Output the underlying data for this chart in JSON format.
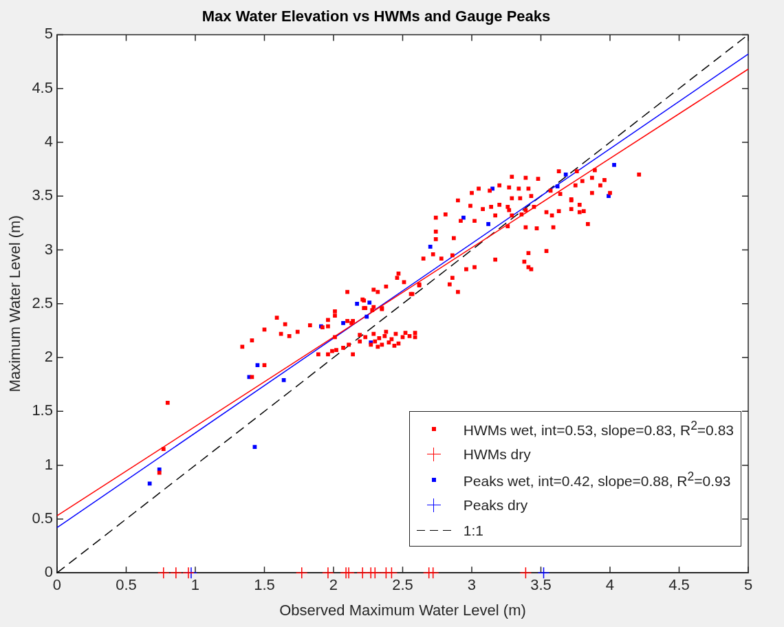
{
  "chart_data": {
    "type": "scatter",
    "title": "Max Water Elevation vs HWMs and Gauge Peaks",
    "xlabel": "Observed Maximum Water Level (m)",
    "ylabel": "Maximum Water Level (m)",
    "xlim": [
      0,
      5
    ],
    "ylim": [
      0,
      5
    ],
    "xticks": [
      0,
      0.5,
      1,
      1.5,
      2,
      2.5,
      3,
      3.5,
      4,
      4.5,
      5
    ],
    "yticks": [
      0,
      0.5,
      1,
      1.5,
      2,
      2.5,
      3,
      3.5,
      4,
      4.5,
      5
    ],
    "grid": false,
    "legend": "bottom right",
    "series": [
      {
        "name": "HWMs wet, int=0.53, slope=0.83, R$^{2}$=0.83",
        "marker": "square",
        "color": "#ff0000",
        "x": [
          0.74,
          0.77,
          0.8,
          1.34,
          1.41,
          1.5,
          1.59,
          1.65,
          1.62,
          1.68,
          1.74,
          1.83,
          1.5,
          1.41,
          1.96,
          1.96,
          2.01,
          2.01,
          2.13,
          2.23,
          2.35,
          2.28,
          2.21,
          1.89,
          1.96,
          1.99,
          2.02,
          2.07,
          2.11,
          2.14,
          2.19,
          2.19,
          2.23,
          2.3,
          2.33,
          2.35,
          2.37,
          2.4,
          2.42,
          2.45,
          2.47,
          2.5,
          2.52,
          2.55,
          2.38,
          2.32,
          2.44,
          2.59,
          2.59,
          2.27,
          2.29,
          2.1,
          2.29,
          2.32,
          2.38,
          2.47,
          2.46,
          2.51,
          2.62,
          2.57,
          2.22,
          2.22,
          2.35,
          2.29,
          2.14,
          2.1,
          2.01,
          1.92,
          2.9,
          2.99,
          3.08,
          3.14,
          3.2,
          2.74,
          2.81,
          2.92,
          3.02,
          3.17,
          3.26,
          3.26,
          3.29,
          3.36,
          3.39,
          3.47,
          3.59,
          3.54,
          3.58,
          3.63,
          3.72,
          3.72,
          3.78,
          3.78,
          3.84,
          2.74,
          2.74,
          2.87,
          2.65,
          2.72,
          2.78,
          2.86,
          2.96,
          3.02,
          3.17,
          2.86,
          2.84,
          2.9,
          2.62,
          2.56,
          3.38,
          3.41,
          3.41,
          3.54,
          3.43,
          3.29,
          3.39,
          3.48,
          3.63,
          3.76,
          3.89,
          3.27,
          3.34,
          3.41,
          3.29,
          3.35,
          3.43,
          3.57,
          3.64,
          3.75,
          3.8,
          3.87,
          3.87,
          3.93,
          3.96,
          3.72,
          4.21,
          4.0,
          3.27,
          3.39,
          3.45,
          3.81,
          3.13,
          3.05,
          3.0,
          3.2
        ],
        "values": [
          0.93,
          1.15,
          1.58,
          2.1,
          2.16,
          2.26,
          2.37,
          2.31,
          2.22,
          2.2,
          2.24,
          2.3,
          1.93,
          1.82,
          2.35,
          2.29,
          2.43,
          2.39,
          2.32,
          2.46,
          2.45,
          2.44,
          2.54,
          2.03,
          2.03,
          2.06,
          2.07,
          2.09,
          2.12,
          2.03,
          2.15,
          2.21,
          2.19,
          2.15,
          2.18,
          2.12,
          2.2,
          2.14,
          2.17,
          2.22,
          2.13,
          2.19,
          2.23,
          2.2,
          2.24,
          2.1,
          2.11,
          2.23,
          2.19,
          2.12,
          2.22,
          2.61,
          2.63,
          2.61,
          2.66,
          2.78,
          2.74,
          2.7,
          2.67,
          2.59,
          2.53,
          2.46,
          2.46,
          2.47,
          2.34,
          2.34,
          2.19,
          2.28,
          3.46,
          3.41,
          3.38,
          3.4,
          3.42,
          3.3,
          3.33,
          3.27,
          3.27,
          3.32,
          3.4,
          3.22,
          3.32,
          3.33,
          3.21,
          3.2,
          3.21,
          3.35,
          3.32,
          3.36,
          3.38,
          3.47,
          3.42,
          3.35,
          3.24,
          3.17,
          3.1,
          3.11,
          2.92,
          2.96,
          2.92,
          2.95,
          2.82,
          2.84,
          2.91,
          2.74,
          2.68,
          2.61,
          2.68,
          2.59,
          2.89,
          2.97,
          2.84,
          2.99,
          2.82,
          3.68,
          3.67,
          3.66,
          3.73,
          3.73,
          3.74,
          3.58,
          3.57,
          3.57,
          3.48,
          3.48,
          3.5,
          3.55,
          3.52,
          3.6,
          3.64,
          3.67,
          3.53,
          3.6,
          3.65,
          3.46,
          3.7,
          3.53,
          3.37,
          3.37,
          3.4,
          3.36,
          3.55,
          3.57,
          3.53,
          3.6
        ]
      },
      {
        "name": "HWMs dry",
        "marker": "cross",
        "color": "#ff0000",
        "x": [
          0.77,
          0.86,
          0.95,
          1.77,
          1.96,
          2.09,
          2.11,
          2.21,
          2.27,
          2.3,
          2.38,
          2.42,
          2.69,
          2.72,
          3.39
        ],
        "values": [
          0,
          0,
          0,
          0,
          0,
          0,
          0,
          0,
          0,
          0,
          0,
          0,
          0,
          0,
          0
        ]
      },
      {
        "name": "Peaks wet, int=0.42, slope=0.88, R$^{2}$=0.93",
        "marker": "square",
        "color": "#0000ff",
        "x": [
          0.67,
          0.74,
          1.43,
          1.39,
          1.45,
          1.64,
          1.91,
          2.07,
          2.17,
          2.26,
          2.24,
          2.27,
          2.7,
          2.94,
          3.12,
          3.15,
          3.68,
          3.62,
          4.03,
          3.99
        ],
        "values": [
          0.83,
          0.96,
          1.17,
          1.82,
          1.93,
          1.79,
          2.29,
          2.32,
          2.5,
          2.51,
          2.38,
          2.14,
          3.03,
          3.3,
          3.24,
          3.57,
          3.7,
          3.59,
          3.79,
          3.5
        ]
      },
      {
        "name": "Peaks dry",
        "marker": "cross",
        "color": "#0000ff",
        "x": [
          0.97,
          3.52
        ],
        "values": [
          0,
          0
        ]
      },
      {
        "type": "line",
        "marker": "none",
        "line_style": "solid",
        "color": "#ff0000",
        "x": [
          0,
          5
        ],
        "values": [
          0.53,
          4.68
        ]
      },
      {
        "type": "line",
        "marker": "none",
        "line_style": "solid",
        "color": "#0000ff",
        "x": [
          0,
          5
        ],
        "values": [
          0.42,
          4.82
        ]
      },
      {
        "name": "1:1",
        "type": "line",
        "marker": "none",
        "line_style": "dashed",
        "color": "#000000",
        "x": [
          0,
          5
        ],
        "values": [
          0,
          5
        ]
      }
    ]
  }
}
